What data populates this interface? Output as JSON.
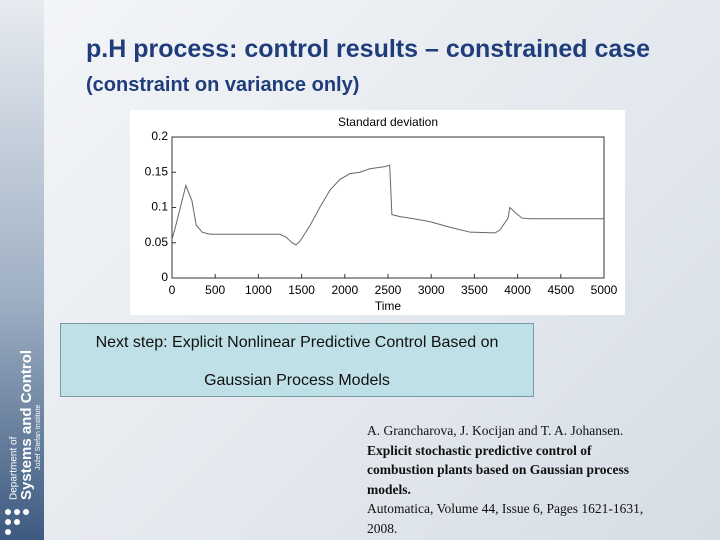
{
  "slide": {
    "title": "p.H process: control results – constrained case",
    "subtitle": "(constraint on variance only)",
    "note": [
      "Next step: Explicit Nonlinear Predictive Control Based on",
      "Gaussian Process Models"
    ],
    "reference": [
      "A. Grancharova, J. Kocijan and T. A. Johansen.",
      "Explicit stochastic predictive control of",
      "combustion plants based on Gaussian process",
      "models.",
      "Automatica, Volume 44, Issue 6, Pages 1621-1631,",
      "2008."
    ],
    "logo": [
      "Department of",
      "Systems and Control",
      "Jožef Stefan Institute"
    ]
  },
  "chart_data": {
    "type": "line",
    "title": "Standard deviation",
    "x_label": "Time",
    "color": "#666666",
    "x": [
      0,
      35,
      160,
      230,
      280,
      350,
      440,
      1250,
      1320,
      1390,
      1435,
      1480,
      1600,
      1710,
      1830,
      1945,
      2060,
      2175,
      2290,
      2465,
      2520,
      2545,
      2640,
      2755,
      2985,
      3215,
      3450,
      3740,
      3795,
      3890,
      3910,
      3980,
      4050,
      4140,
      4315,
      5000
    ],
    "values": [
      0.055,
      0.07,
      0.131,
      0.11,
      0.075,
      0.065,
      0.062,
      0.062,
      0.058,
      0.05,
      0.047,
      0.052,
      0.075,
      0.1,
      0.125,
      0.14,
      0.148,
      0.15,
      0.155,
      0.158,
      0.16,
      0.09,
      0.087,
      0.085,
      0.08,
      0.072,
      0.065,
      0.064,
      0.068,
      0.085,
      0.1,
      0.092,
      0.085,
      0.084,
      0.084,
      0.084
    ],
    "xlim": [
      0,
      5000
    ],
    "ylim": [
      0,
      0.2
    ],
    "xticks": [
      0,
      500,
      1000,
      1500,
      2000,
      2500,
      3000,
      3500,
      4000,
      4500,
      5000
    ],
    "yticks": [
      0,
      0.05,
      0.1,
      0.15,
      0.2
    ]
  }
}
